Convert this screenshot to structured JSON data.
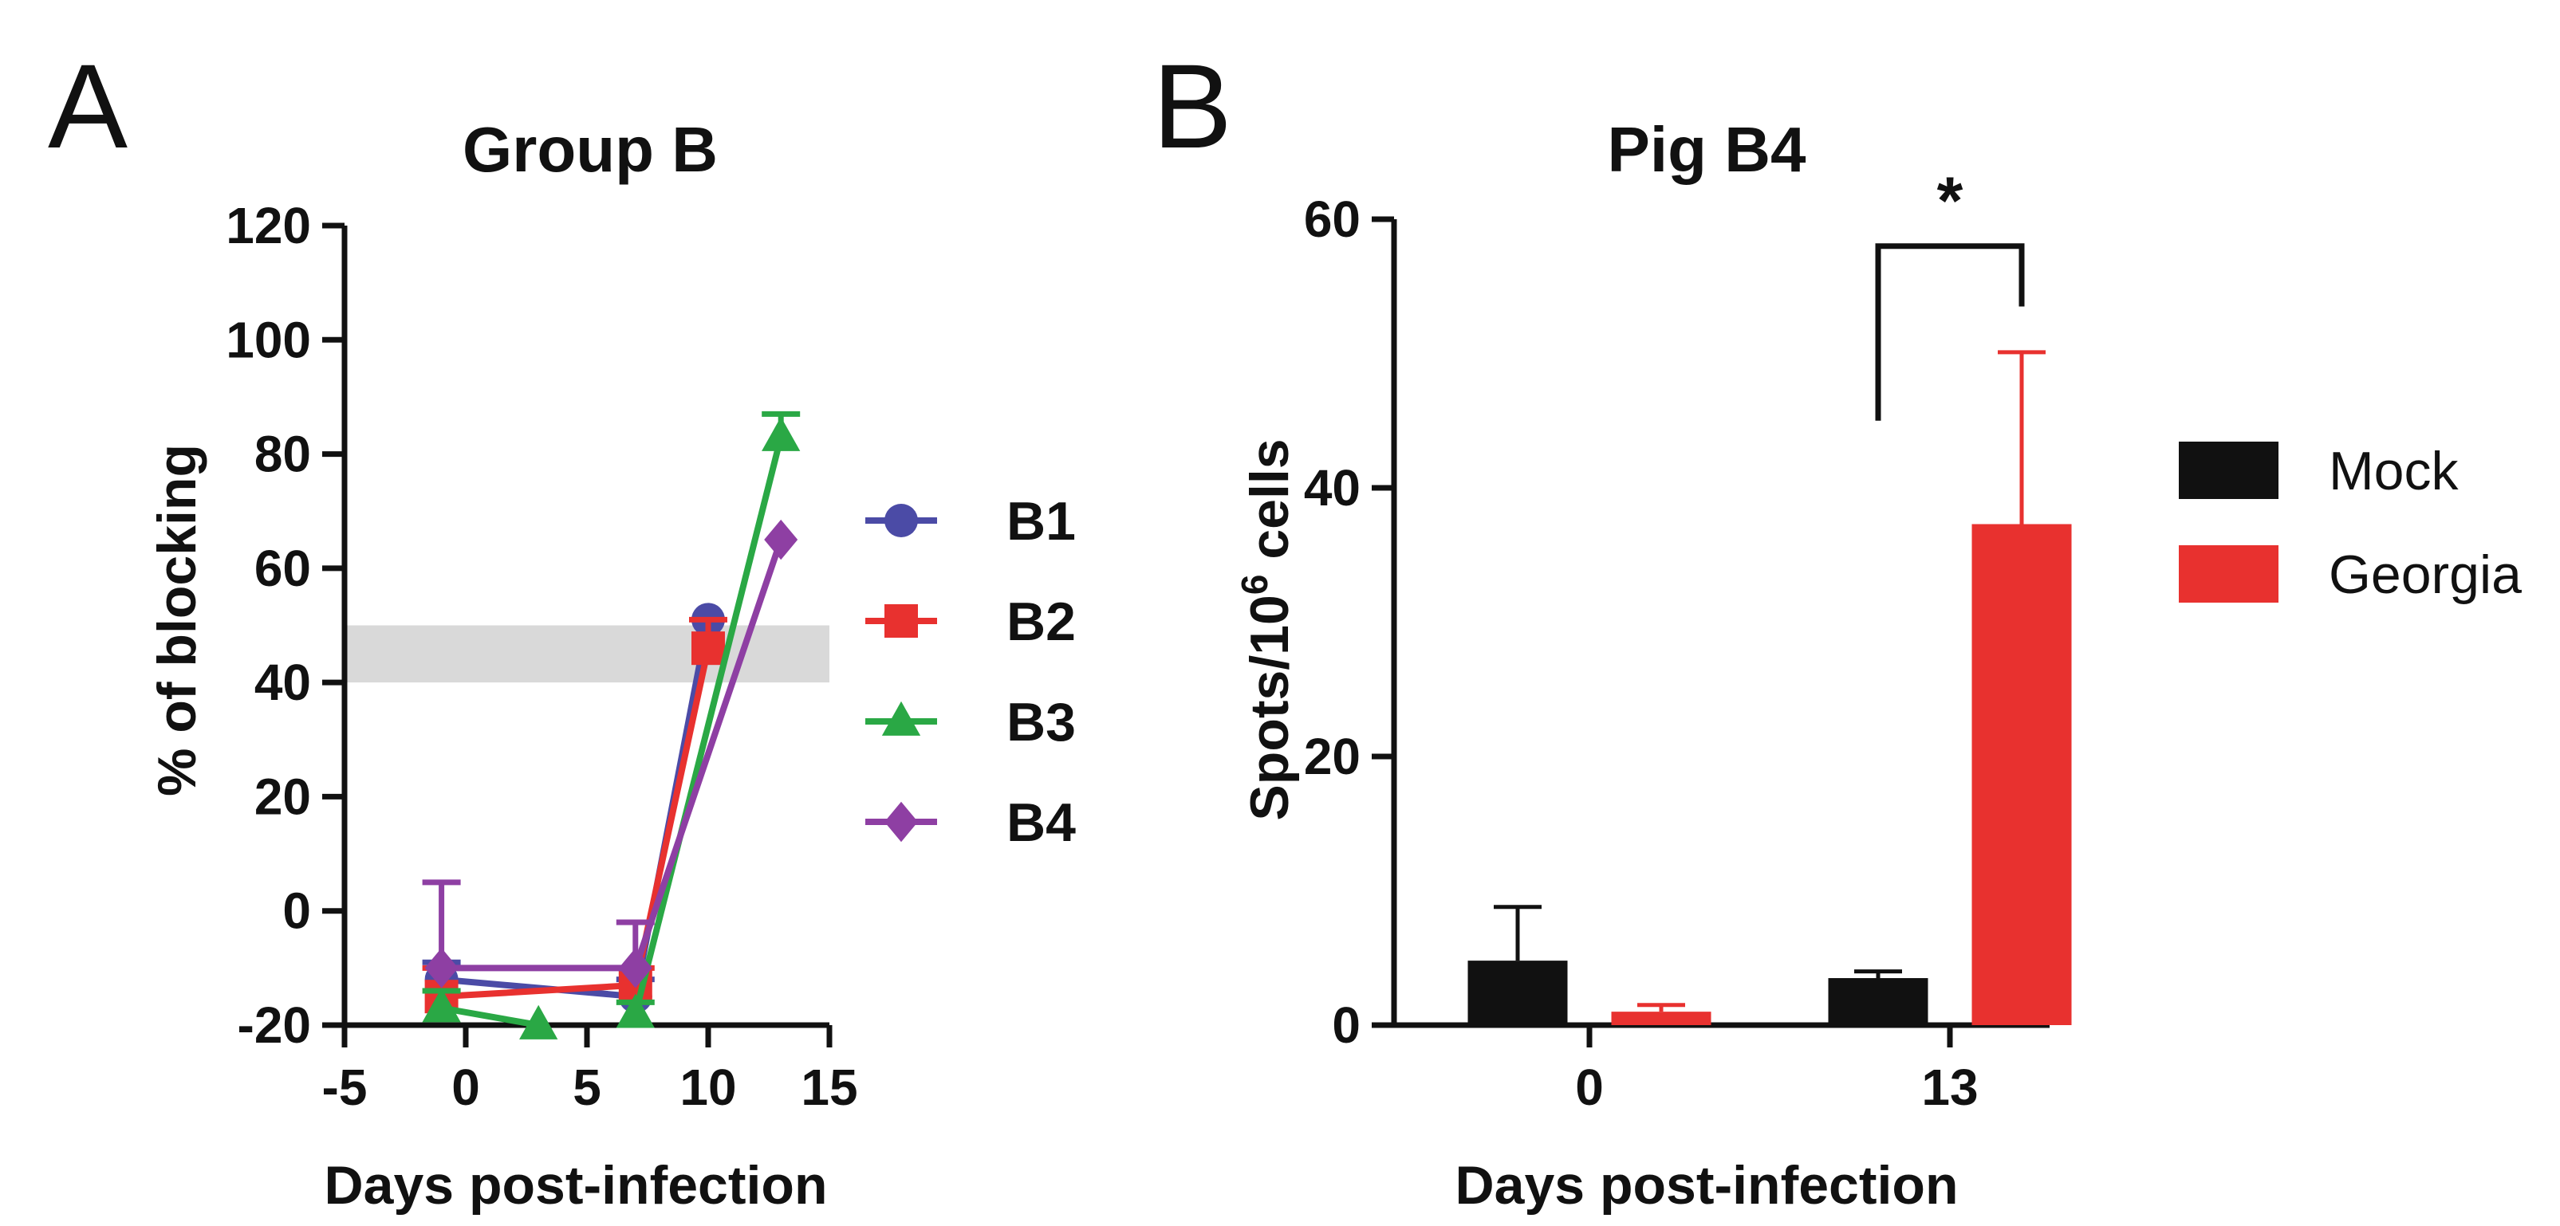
{
  "figure": {
    "panel_a_letter": "A",
    "panel_b_letter": "B"
  },
  "chart_data": [
    {
      "panel": "A",
      "type": "line",
      "title": "Group B",
      "xlabel": "Days post-infection",
      "ylabel": "% of blocking",
      "xlim": [
        -5,
        15
      ],
      "ylim": [
        -20,
        120
      ],
      "xticks": [
        -5,
        0,
        5,
        10,
        15
      ],
      "yticks": [
        -20,
        0,
        20,
        40,
        60,
        80,
        100,
        120
      ],
      "reference_band": {
        "y_min": 40,
        "y_max": 50,
        "color": "#d9d9d9"
      },
      "legend_position": "right",
      "series": [
        {
          "name": "B1",
          "color": "#4b4ba6",
          "marker": "circle",
          "x": [
            -1,
            7,
            10
          ],
          "y": [
            -12,
            -15,
            51
          ],
          "err": [
            3,
            3,
            0
          ]
        },
        {
          "name": "B2",
          "color": "#e8312f",
          "marker": "square",
          "x": [
            -1,
            7,
            10
          ],
          "y": [
            -15,
            -13,
            46
          ],
          "err": [
            5,
            3,
            5
          ]
        },
        {
          "name": "B3",
          "color": "#2aa845",
          "marker": "triangle",
          "x": [
            -1,
            3
          ],
          "y": [
            -17,
            -20
          ],
          "err": [
            3,
            0
          ]
        },
        {
          "name": "B3",
          "color": "#2aa845",
          "marker": "triangle",
          "x": [
            7,
            13
          ],
          "y": [
            -18,
            83
          ],
          "err": [
            2,
            4
          ],
          "show_in_legend": false
        },
        {
          "name": "B4",
          "color": "#8e3fa3",
          "marker": "diamond",
          "x": [
            -1,
            7,
            13
          ],
          "y": [
            -10,
            -10,
            65
          ],
          "err": [
            15,
            8,
            0
          ]
        }
      ]
    },
    {
      "panel": "B",
      "type": "bar",
      "title": "Pig B4",
      "xlabel": "Days post-infection",
      "ylabel_main": "Spots/10",
      "ylabel_sup": "6",
      "ylabel_tail": " cells",
      "categories": [
        "0",
        "13"
      ],
      "ylim": [
        0,
        60
      ],
      "yticks": [
        0,
        20,
        40,
        60
      ],
      "legend_position": "right",
      "series": [
        {
          "name": "Mock",
          "color": "#111111",
          "values": [
            4.8,
            3.5
          ],
          "err": [
            4.0,
            0.5
          ]
        },
        {
          "name": "Georgia",
          "color": "#e8312f",
          "values": [
            1.0,
            37.3
          ],
          "err": [
            0.5,
            12.8
          ]
        }
      ],
      "significance": {
        "label": "*",
        "category": "13"
      }
    }
  ]
}
